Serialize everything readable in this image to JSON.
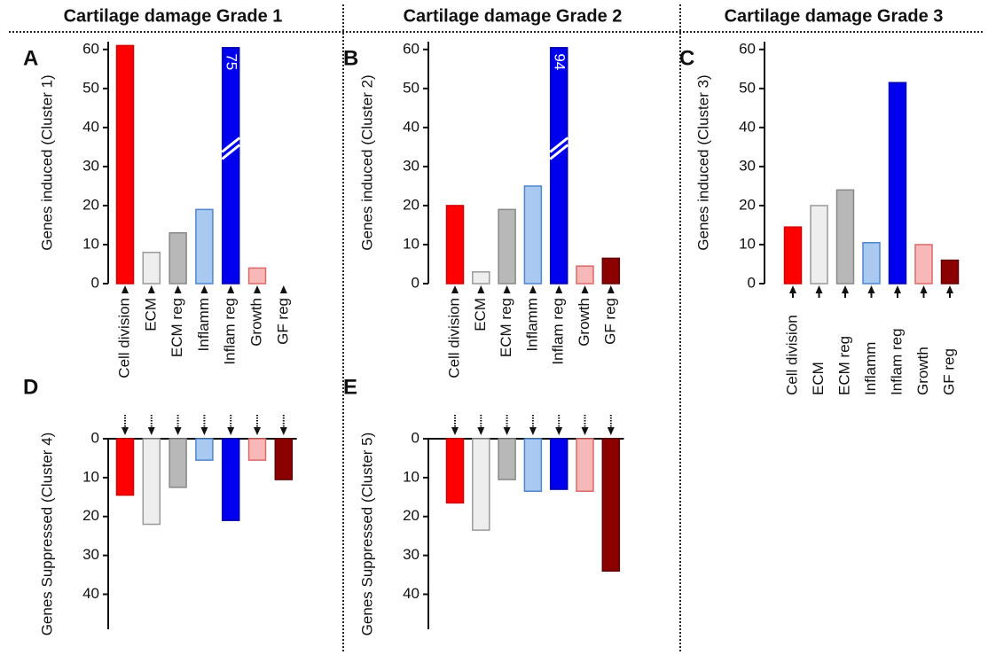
{
  "chart_data": [
    {
      "type": "bar",
      "header": "Cartilage damage Grade 1",
      "panel": "A",
      "ylabel": "Genes induced (Cluster 1)",
      "categories": [
        "Cell division",
        "ECM",
        "ECM reg",
        "Inflamm",
        "Inflam reg",
        "Growth",
        "GF reg"
      ],
      "values": [
        61,
        8,
        13,
        19,
        75,
        4,
        0
      ],
      "value_labels": [
        null,
        null,
        null,
        null,
        "75",
        null,
        null
      ],
      "colors": [
        "#ff0000",
        "#eeeeee",
        "#b8b8b8",
        "#a9c9f0",
        "#0000ee",
        "#f8b8b8",
        "#8b0000"
      ],
      "ylim": [
        0,
        62
      ],
      "yticks": [
        0,
        10,
        20,
        30,
        40,
        50,
        60
      ],
      "axis_break": true
    },
    {
      "type": "bar",
      "header": "Cartilage damage Grade 2",
      "panel": "B",
      "ylabel": "Genes induced (Cluster 2)",
      "categories": [
        "Cell division",
        "ECM",
        "ECM reg",
        "Inflamm",
        "Inflam reg",
        "Growth",
        "GF reg"
      ],
      "values": [
        20,
        3,
        19,
        25,
        94,
        4.5,
        6.5
      ],
      "value_labels": [
        null,
        null,
        null,
        null,
        "94",
        null,
        null
      ],
      "colors": [
        "#ff0000",
        "#eeeeee",
        "#b8b8b8",
        "#a9c9f0",
        "#0000ee",
        "#f8b8b8",
        "#8b0000"
      ],
      "ylim": [
        0,
        62
      ],
      "yticks": [
        0,
        10,
        20,
        30,
        40,
        50,
        60
      ],
      "axis_break": true
    },
    {
      "type": "bar",
      "header": "Cartilage damage Grade 3",
      "panel": "C",
      "ylabel": "Genes induced (Cluster 3)",
      "categories": [
        "Cell division",
        "ECM",
        "ECM reg",
        "Inflamm",
        "Inflam reg",
        "Growth",
        "GF reg"
      ],
      "values": [
        14.5,
        20,
        24,
        10.5,
        51.5,
        10,
        6
      ],
      "colors": [
        "#ff0000",
        "#eeeeee",
        "#b8b8b8",
        "#a9c9f0",
        "#0000ee",
        "#f8b8b8",
        "#8b0000"
      ],
      "ylim": [
        0,
        62
      ],
      "yticks": [
        0,
        10,
        20,
        30,
        40,
        50,
        60
      ]
    },
    {
      "type": "bar",
      "panel": "D",
      "ylabel": "Genes Suppressed (Cluster 4)",
      "inverted": true,
      "values": [
        14.5,
        22,
        12.5,
        5.5,
        21,
        5.5,
        10.5
      ],
      "colors": [
        "#ff0000",
        "#eeeeee",
        "#b8b8b8",
        "#a9c9f0",
        "#0000ee",
        "#f8b8b8",
        "#8b0000"
      ],
      "ylim": [
        0,
        49
      ],
      "yticks": [
        0,
        10,
        20,
        30,
        40
      ]
    },
    {
      "type": "bar",
      "panel": "E",
      "ylabel": "Genes Suppressed (Cluster 5)",
      "inverted": true,
      "values": [
        16.5,
        23.5,
        10.5,
        13.5,
        13,
        13.5,
        34
      ],
      "colors": [
        "#ff0000",
        "#eeeeee",
        "#b8b8b8",
        "#a9c9f0",
        "#0000ee",
        "#f8b8b8",
        "#8b0000"
      ],
      "ylim": [
        0,
        49
      ],
      "yticks": [
        0,
        10,
        20,
        30,
        40
      ]
    }
  ]
}
